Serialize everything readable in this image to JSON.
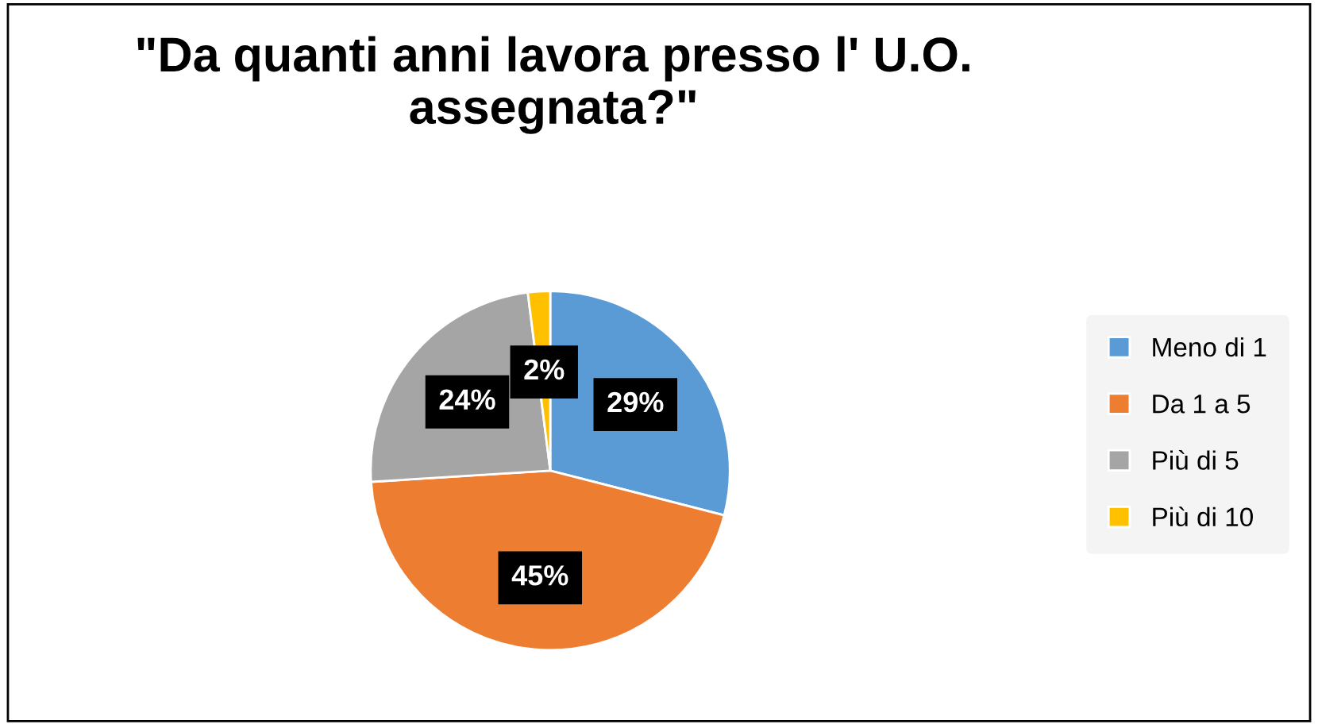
{
  "chart_data": {
    "type": "pie",
    "title": "\"Da quanti anni lavora presso l' U.O. assegnata?\"",
    "categories": [
      "Meno di 1",
      "Da 1 a 5",
      "Più di 5",
      "Più di 10"
    ],
    "values": [
      29,
      45,
      24,
      2
    ],
    "colors": [
      "#5b9bd5",
      "#ed7d31",
      "#a5a5a5",
      "#ffc000"
    ],
    "value_labels": [
      "29%",
      "45%",
      "24%",
      "2%"
    ],
    "legend": "right"
  }
}
